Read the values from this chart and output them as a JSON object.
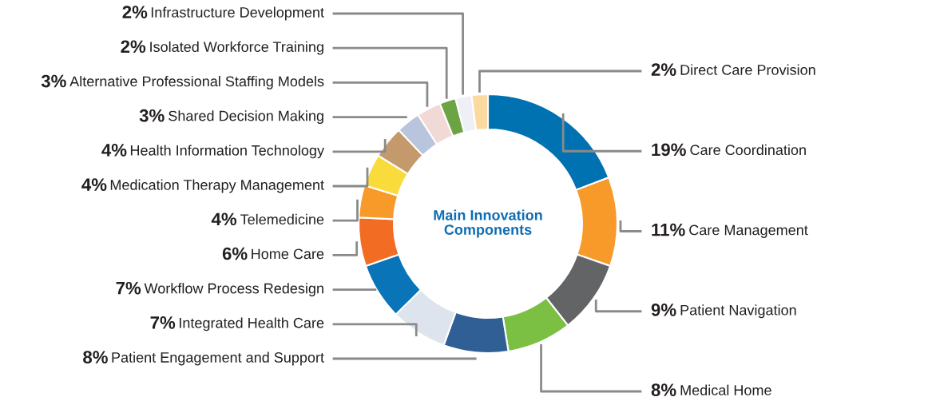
{
  "chart_data": {
    "type": "donut",
    "title": "Main Innovation\nComponents",
    "categories": [
      "Care Coordination",
      "Care Management",
      "Patient Navigation",
      "Medical Home",
      "Patient Engagement and Support",
      "Integrated Health Care",
      "Workflow Process Redesign",
      "Home Care",
      "Telemedicine",
      "Medication Therapy Management",
      "Health Information Technology",
      "Shared Decision Making",
      "Alternative Professional Staffing Models",
      "Isolated Workforce Training",
      "Infrastructure Development",
      "Direct Care Provision"
    ],
    "values": [
      19,
      11,
      9,
      8,
      8,
      7,
      7,
      6,
      4,
      4,
      4,
      3,
      3,
      2,
      2,
      2
    ],
    "value_labels": [
      "19%",
      "11%",
      "9%",
      "8%",
      "8%",
      "7%",
      "7%",
      "6%",
      "4%",
      "4%",
      "4%",
      "3%",
      "3%",
      "2%",
      "2%",
      "2%"
    ],
    "colors": [
      "#0072b2",
      "#f79a2a",
      "#636466",
      "#7bbf43",
      "#2f5f95",
      "#dde4ee",
      "#0a74b8",
      "#f26c23",
      "#f79a2a",
      "#f9dc3c",
      "#c49a6c",
      "#b8c5dc",
      "#f1d9d5",
      "#6ca443",
      "#eef0f6",
      "#fcd9a0"
    ],
    "legend": false
  }
}
